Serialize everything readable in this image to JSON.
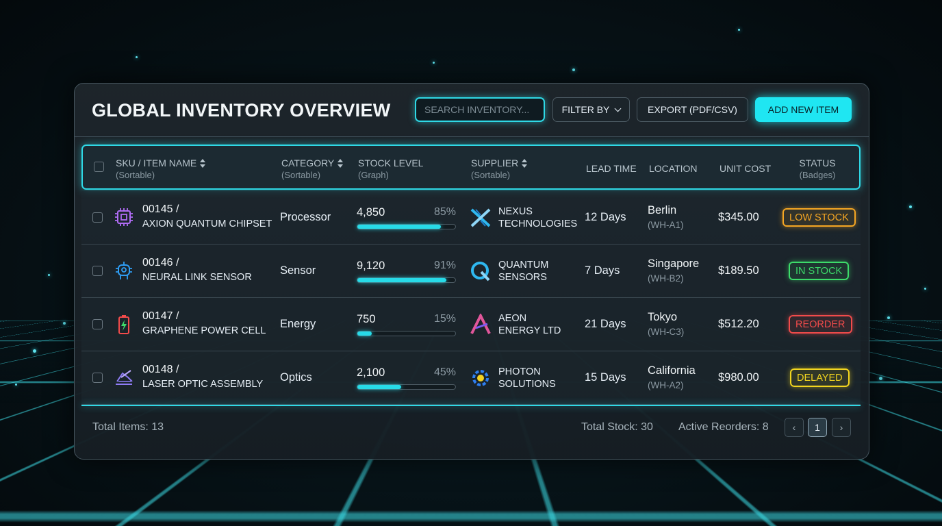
{
  "header": {
    "title": "GLOBAL INVENTORY OVERVIEW",
    "search_placeholder": "SEARCH INVENTORY...",
    "filter_label": "FILTER BY",
    "export_label": "EXPORT (PDF/CSV)",
    "add_label": "ADD NEW ITEM"
  },
  "columns": {
    "sku": {
      "label": "SKU / ITEM NAME",
      "sub": "(Sortable)"
    },
    "category": {
      "label": "CATEGORY",
      "sub": "(Sortable)"
    },
    "stock": {
      "label": "STOCK LEVEL",
      "sub": "(Graph)"
    },
    "supplier": {
      "label": "SUPPLIER",
      "sub": "(Sortable)"
    },
    "lead": {
      "label": "LEAD TIME"
    },
    "location": {
      "label": "LOCATION"
    },
    "cost": {
      "label": "UNIT COST"
    },
    "status": {
      "label": "STATUS",
      "sub": "(Badges)"
    }
  },
  "rows": [
    {
      "sku": "00145 /",
      "name": "AXION QUANTUM CHIPSET",
      "icon": "chip-icon",
      "category": "Processor",
      "stock": "4,850",
      "percent": "85%",
      "fill": 0.85,
      "supplier_line1": "NEXUS",
      "supplier_line2": "TECHNOLOGIES",
      "supplier_icon": "nexus-logo-icon",
      "lead": "12 Days",
      "location": "Berlin",
      "location_code": "(WH-A1)",
      "cost": "$345.00",
      "status": "LOW STOCK",
      "status_color": "#f5a623"
    },
    {
      "sku": "00146 /",
      "name": "NEURAL LINK SENSOR",
      "icon": "sensor-icon",
      "category": "Sensor",
      "stock": "9,120",
      "percent": "91%",
      "fill": 0.91,
      "supplier_line1": "QUANTUM",
      "supplier_line2": "SENSORS",
      "supplier_icon": "quantum-logo-icon",
      "lead": "7 Days",
      "location": "Singapore",
      "location_code": "(WH-B2)",
      "cost": "$189.50",
      "status": "IN STOCK",
      "status_color": "#3ddc6a"
    },
    {
      "sku": "00147 /",
      "name": "GRAPHENE POWER CELL",
      "icon": "battery-icon",
      "category": "Energy",
      "stock": "750",
      "percent": "15%",
      "fill": 0.15,
      "supplier_line1": "AEON",
      "supplier_line2": "ENERGY LTD",
      "supplier_icon": "aeon-logo-icon",
      "lead": "21 Days",
      "location": "Tokyo",
      "location_code": "(WH-C3)",
      "cost": "$512.20",
      "status": "REORDER",
      "status_color": "#f24b4b"
    },
    {
      "sku": "00148 /",
      "name": "LASER OPTIC ASSEMBLY",
      "icon": "laser-icon",
      "category": "Optics",
      "stock": "2,100",
      "percent": "45%",
      "fill": 0.45,
      "supplier_line1": "PHOTON",
      "supplier_line2": "SOLUTIONS",
      "supplier_icon": "photon-logo-icon",
      "lead": "15 Days",
      "location": "California",
      "location_code": "(WH-A2)",
      "cost": "$980.00",
      "status": "DELAYED",
      "status_color": "#f2d51f"
    }
  ],
  "footer": {
    "total_items": "Total Items: 13",
    "total_stock": "Total Stock: 30",
    "active_reorders": "Active Reorders: 8",
    "page_prev": "‹",
    "page_current": "1",
    "page_next": "›"
  },
  "colors": {
    "accent": "#1fe6f2",
    "background": "#071419",
    "panel": "#1b252b"
  }
}
